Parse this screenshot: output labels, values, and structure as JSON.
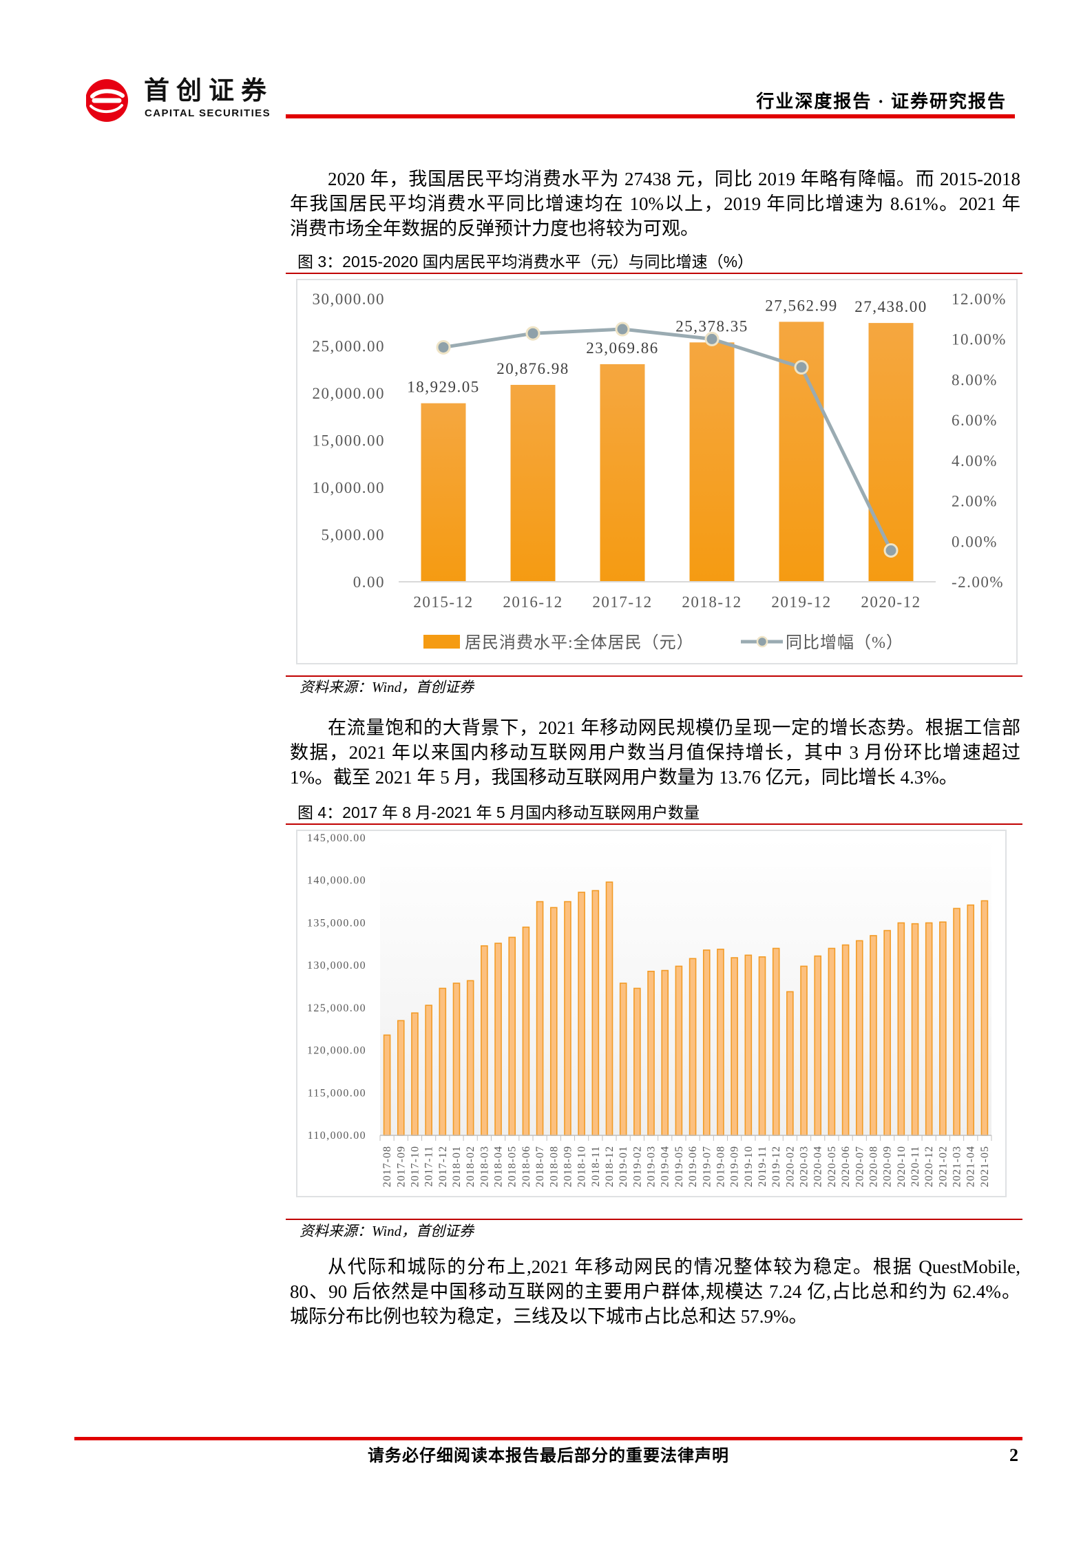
{
  "header": {
    "logo_cn": "首创证券",
    "logo_en": "CAPITAL SECURITIES",
    "report_type": "行业深度报告 · 证券研究报告",
    "accent_color": "#e00000"
  },
  "body": {
    "paragraph_1": {
      "lines": [
        "2020 年，我国居民平均消费水平为 27438 元，同比 2019 年略有降幅。而 2015-2018",
        "年我国居民平均消费水平同比增速均在 10%以上，2019 年同比增速为 8.61%。2021 年",
        "消费市场全年数据的反弹预计力度也将较为可观。"
      ]
    },
    "figure_3": {
      "title": "图 3：2015-2020 国内居民平均消费水平（元）与同比增速（%）",
      "source": "资料来源：Wind，首创证券"
    },
    "paragraph_2": {
      "lines": [
        "在流量饱和的大背景下，2021 年移动网民规模仍呈现一定的增长态势。根据工信部",
        "数据，2021 年以来国内移动互联网用户数当月值保持增长，其中 3 月份环比增速超过",
        "1%。截至 2021 年 5 月，我国移动互联网用户数量为 13.76 亿元，同比增长 4.3%。"
      ]
    },
    "figure_4": {
      "title": "图 4：2017 年 8 月-2021 年 5 月国内移动互联网用户数量",
      "source": "资料来源：Wind，首创证券"
    },
    "paragraph_3": {
      "lines": [
        "从代际和城际的分布上,2021 年移动网民的情况整体较为稳定。根据 QuestMobile,",
        "80、90 后依然是中国移动互联网的主要用户群体,规模达 7.24 亿,占比总和约为 62.4%。",
        "城际分布比例也较为稳定，三线及以下城市占比总和达 57.9%。"
      ]
    }
  },
  "footer": {
    "disclaimer": "请务必仔细阅读本报告最后部分的重要法律声明",
    "page_number": "2"
  },
  "chart_data": [
    {
      "type": "bar+line",
      "title": "图 3：2015-2020 国内居民平均消费水平（元）与同比增速（%）",
      "categories": [
        "2015-12",
        "2016-12",
        "2017-12",
        "2018-12",
        "2019-12",
        "2020-12"
      ],
      "series": [
        {
          "name": "居民消费水平:全体居民（元）",
          "type": "bar",
          "axis": "left",
          "values": [
            18929.05,
            20876.98,
            23069.86,
            25378.35,
            27562.99,
            27438.0
          ],
          "data_labels": [
            "18,929.05",
            "20,876.98",
            "23,069.86",
            "25,378.35",
            "27,562.99",
            "27,438.00"
          ],
          "color_top": "#f5a740",
          "color_bottom": "#f59b12"
        },
        {
          "name": "同比增幅（%）",
          "type": "line",
          "axis": "right",
          "values": [
            9.6,
            10.29,
            10.5,
            10.01,
            8.61,
            -0.45
          ],
          "color": "#9aabb2",
          "marker_fill": "#8fa1a9",
          "marker_stroke": "#efe4c6"
        }
      ],
      "y_left": {
        "min": 0,
        "max": 30000,
        "ticks": [
          0,
          5000,
          10000,
          15000,
          20000,
          25000,
          30000
        ],
        "tick_labels": [
          "0.00",
          "5,000.00",
          "10,000.00",
          "15,000.00",
          "20,000.00",
          "25,000.00",
          "30,000.00"
        ]
      },
      "y_right": {
        "min": -2,
        "max": 12,
        "ticks": [
          -2,
          0,
          2,
          4,
          6,
          8,
          10,
          12
        ],
        "tick_labels": [
          "-2.00%",
          "0.00%",
          "2.00%",
          "4.00%",
          "6.00%",
          "8.00%",
          "10.00%",
          "12.00%"
        ]
      },
      "xlabel": "",
      "ylabel": "",
      "grid": false,
      "legend_position": "bottom"
    },
    {
      "type": "bar",
      "title": "图 4：2017 年 8 月-2021 年 5 月国内移动互联网用户数量",
      "categories": [
        "2017-08",
        "2017-09",
        "2017-10",
        "2017-11",
        "2017-12",
        "2018-01",
        "2018-02",
        "2018-03",
        "2018-04",
        "2018-05",
        "2018-06",
        "2018-07",
        "2018-08",
        "2018-09",
        "2018-10",
        "2018-11",
        "2018-12",
        "2019-01",
        "2019-02",
        "2019-03",
        "2019-04",
        "2019-05",
        "2019-06",
        "2019-07",
        "2019-08",
        "2019-09",
        "2019-10",
        "2019-11",
        "2019-12",
        "2020-02",
        "2020-03",
        "2020-04",
        "2020-05",
        "2020-06",
        "2020-07",
        "2020-08",
        "2020-09",
        "2020-10",
        "2020-11",
        "2020-12",
        "2021-02",
        "2021-03",
        "2021-04",
        "2021-05"
      ],
      "values": [
        121800,
        123500,
        124400,
        125300,
        127300,
        127900,
        128200,
        132300,
        132600,
        133300,
        134500,
        137500,
        136800,
        137500,
        138600,
        138800,
        139800,
        127900,
        127300,
        129300,
        129400,
        129900,
        130800,
        131800,
        131900,
        130900,
        131200,
        131000,
        132000,
        126900,
        129900,
        131100,
        132000,
        132400,
        132900,
        133500,
        134100,
        135000,
        134900,
        135000,
        135100,
        136700,
        137100,
        137600
      ],
      "ylim": [
        110000,
        145000
      ],
      "ticks": [
        110000,
        115000,
        120000,
        125000,
        130000,
        135000,
        140000,
        145000
      ],
      "tick_labels": [
        "110,000.00",
        "115,000.00",
        "120,000.00",
        "125,000.00",
        "130,000.00",
        "135,000.00",
        "140,000.00",
        "145,000.00"
      ],
      "bar_fill": "#fcc07f",
      "bar_stroke": "#f29b26",
      "xlabel": "",
      "ylabel": "",
      "grid": false,
      "legend_position": "none"
    }
  ]
}
